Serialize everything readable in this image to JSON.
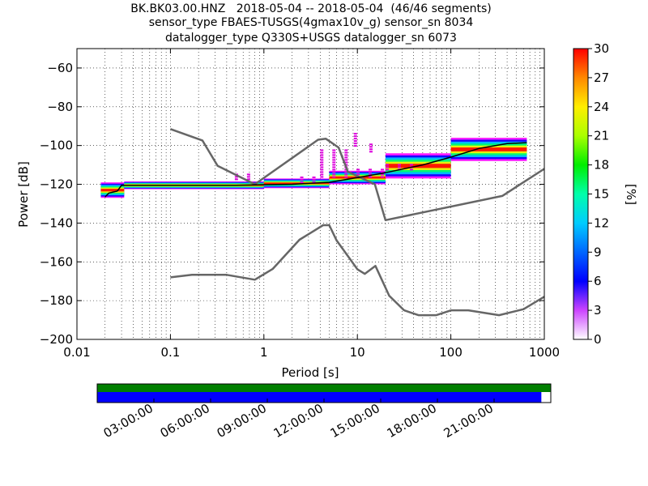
{
  "title_lines": [
    "BK.BK03.00.HNZ   2018-05-04 -- 2018-05-04  (46/46 segments)",
    "sensor_type FBAES-TUSGS(4gmax10v_g) sensor_sn 8034",
    "datalogger_type Q330S+USGS datalogger_sn 6073"
  ],
  "colors": {
    "noise_model": "#666666",
    "mode_line": "#000000",
    "magenta_cloud": "#dd00dd",
    "coverage_green": "#007f00",
    "coverage_blue": "#0000ff",
    "grid": "#000000"
  },
  "chart_data": {
    "type": "heatmap",
    "title": "BK.BK03.00.HNZ   2018-05-04 -- 2018-05-04  (46/46 segments)",
    "xlabel": "Period [s]",
    "ylabel": "Power [dB]",
    "x_scale": "log",
    "xlim": [
      0.01,
      1000
    ],
    "ylim": [
      -200,
      -50
    ],
    "grid": true,
    "x_ticks": [
      "0.01",
      "0.1",
      "1",
      "10",
      "100",
      "1000"
    ],
    "y_ticks": [
      "−60",
      "−80",
      "−100",
      "−120",
      "−140",
      "−160",
      "−180",
      "−200"
    ],
    "y_tick_values": [
      -60,
      -80,
      -100,
      -120,
      -140,
      -160,
      -180,
      -200
    ],
    "colorbar": {
      "label": "[%]",
      "range": [
        0,
        30
      ],
      "ticks": [
        "0",
        "3",
        "6",
        "9",
        "12",
        "15",
        "18",
        "21",
        "24",
        "27",
        "30"
      ]
    },
    "new_high_noise_model": [
      [
        0.1,
        -91.5
      ],
      [
        0.22,
        -97.4
      ],
      [
        0.32,
        -110.5
      ],
      [
        0.8,
        -120.0
      ],
      [
        3.8,
        -97.0
      ],
      [
        4.6,
        -96.5
      ],
      [
        6.3,
        -101.0
      ],
      [
        7.9,
        -113.5
      ],
      [
        15.4,
        -120.0
      ],
      [
        20.0,
        -138.5
      ],
      [
        354.8,
        -126.0
      ],
      [
        1000,
        -112.0
      ]
    ],
    "new_low_noise_model": [
      [
        0.1,
        -168.0
      ],
      [
        0.17,
        -166.7
      ],
      [
        0.4,
        -166.7
      ],
      [
        0.8,
        -169.2
      ],
      [
        1.24,
        -163.7
      ],
      [
        2.4,
        -148.6
      ],
      [
        4.3,
        -141.1
      ],
      [
        5.0,
        -141.1
      ],
      [
        6.0,
        -149.0
      ],
      [
        10.0,
        -163.8
      ],
      [
        12.0,
        -166.2
      ],
      [
        15.6,
        -162.1
      ],
      [
        21.9,
        -177.5
      ],
      [
        31.6,
        -185.0
      ],
      [
        45.0,
        -187.5
      ],
      [
        70.0,
        -187.5
      ],
      [
        101.0,
        -185.0
      ],
      [
        154.0,
        -185.0
      ],
      [
        328.0,
        -187.5
      ],
      [
        600.0,
        -184.4
      ],
      [
        1000.0,
        -178.0
      ]
    ],
    "mode_line": [
      [
        0.02,
        -126.5
      ],
      [
        0.022,
        -124.5
      ],
      [
        0.027,
        -123.5
      ],
      [
        0.03,
        -120.5
      ],
      [
        0.04,
        -120.5
      ],
      [
        0.1,
        -120.5
      ],
      [
        0.5,
        -120.5
      ],
      [
        1,
        -120.2
      ],
      [
        2,
        -120.0
      ],
      [
        5,
        -119.0
      ],
      [
        10,
        -116.5
      ],
      [
        20,
        -114.0
      ],
      [
        50,
        -110.0
      ],
      [
        100,
        -106.0
      ],
      [
        200,
        -101.5
      ],
      [
        400,
        -99.0
      ],
      [
        650,
        -98.5
      ]
    ],
    "psd_bands": [
      {
        "x": [
          0.018,
          0.032
        ],
        "y": [
          -127,
          -119
        ]
      },
      {
        "x": [
          0.032,
          1.0
        ],
        "y": [
          -122.5,
          -118.5
        ]
      },
      {
        "x": [
          1.0,
          5.0
        ],
        "y": [
          -122.0,
          -117.0
        ]
      },
      {
        "x": [
          5.0,
          20.0
        ],
        "y": [
          -120.0,
          -113.0
        ]
      },
      {
        "x": [
          20.0,
          100.0
        ],
        "y": [
          -117.0,
          -104.0
        ]
      },
      {
        "x": [
          100.0,
          650.0
        ],
        "y": [
          -108.0,
          -96.0
        ]
      }
    ],
    "outlier_cloud": [
      {
        "x": [
          0.4,
          0.7
        ],
        "y": [
          -117.5,
          -114.5
        ]
      },
      {
        "x": [
          2.0,
          4.0
        ],
        "y": [
          -119.0,
          -116.0
        ]
      },
      {
        "x": [
          4.0,
          8.5
        ],
        "y": [
          -116.0,
          -102.0
        ]
      },
      {
        "x": [
          7.5,
          12.0
        ],
        "y": [
          -100.0,
          -93.5
        ]
      },
      {
        "x": [
          11.0,
          16.0
        ],
        "y": [
          -103.0,
          -99.0
        ]
      },
      {
        "x": [
          8.0,
          20.0
        ],
        "y": [
          -117.0,
          -112.0
        ]
      },
      {
        "x": [
          20.0,
          40.0
        ],
        "y": [
          -112.5,
          -109.5
        ]
      }
    ],
    "time_axis": {
      "ticks": [
        "03:00:00",
        "06:00:00",
        "09:00:00",
        "12:00:00",
        "15:00:00",
        "18:00:00",
        "21:00:00"
      ],
      "tick_hours": [
        3,
        6,
        9,
        12,
        15,
        18,
        21
      ],
      "range_hours": [
        0,
        24
      ],
      "data_coverage_hours": [
        0,
        23.5
      ],
      "gap_coverage_hours": [
        0,
        24
      ]
    }
  }
}
